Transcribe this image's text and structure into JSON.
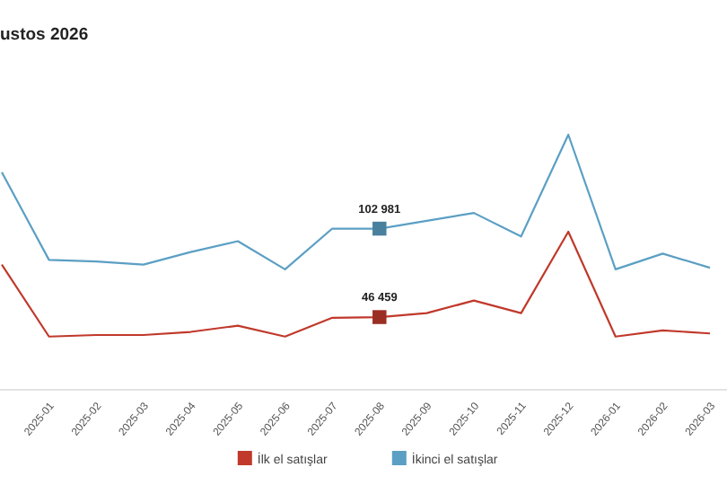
{
  "chart_data": {
    "type": "line",
    "title": "ustos 2026",
    "categories": [
      null,
      "2025-01",
      "2025-02",
      "2025-03",
      "2025-04",
      "2025-05",
      "2025-06",
      "2025-07",
      "2025-08",
      "2025-09",
      "2025-10",
      "2025-11",
      "2025-12",
      "2026-01",
      "2026-02",
      "2026-03"
    ],
    "series": [
      {
        "name": "İlk el satışlar",
        "color": "#c0392b",
        "values": [
          80000,
          34000,
          35000,
          35000,
          37000,
          41000,
          34000,
          46000,
          46459,
          49000,
          57000,
          49000,
          101000,
          34000,
          38000,
          36000
        ],
        "value_labels": [
          null,
          null,
          null,
          null,
          null,
          null,
          null,
          null,
          "46 459",
          null,
          null,
          null,
          null,
          null,
          null,
          null
        ]
      },
      {
        "name": "İkinci el satışlar",
        "color": "#5b9fc4",
        "values": [
          139000,
          83000,
          82000,
          80000,
          88000,
          95000,
          77000,
          103000,
          102981,
          108000,
          113000,
          98000,
          163000,
          77000,
          87000,
          78000
        ],
        "value_labels": [
          null,
          null,
          null,
          null,
          null,
          null,
          null,
          null,
          "102 981",
          null,
          null,
          null,
          null,
          null,
          null,
          null
        ]
      }
    ],
    "legend": "bottom",
    "grid": false
  }
}
